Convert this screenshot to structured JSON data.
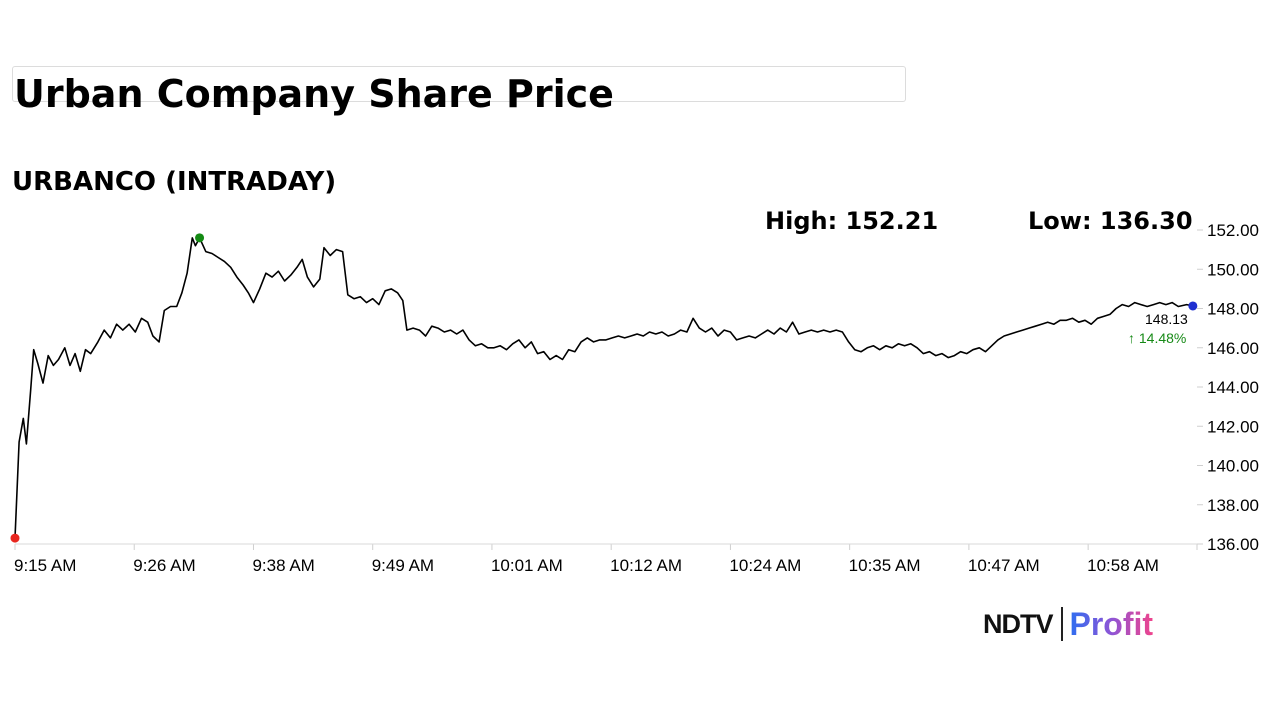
{
  "page": {
    "title": "Urban Company Share Price"
  },
  "chart_data": {
    "type": "line",
    "title": "URBANCO (INTRADAY)",
    "high_label": "High: 152.21",
    "low_label": "Low: 136.30",
    "last_price": "148.13",
    "change_text": "↑ 14.48%",
    "ylim": [
      136.0,
      152.0
    ],
    "y_ticks": [
      "152.00",
      "150.00",
      "148.00",
      "146.00",
      "144.00",
      "142.00",
      "140.00",
      "138.00",
      "136.00"
    ],
    "x_tick_labels": [
      "9:15 AM",
      "9:26 AM",
      "9:38 AM",
      "9:49 AM",
      "10:01 AM",
      "10:12 AM",
      "10:24 AM",
      "10:35 AM",
      "10:47 AM",
      "10:58 AM"
    ],
    "time_range_minutes": [
      0,
      114
    ],
    "x_tick_minutes": [
      0,
      11.5,
      23,
      34.5,
      46,
      57.5,
      69,
      80.5,
      92,
      103.5
    ],
    "series": [
      {
        "color": "#000000",
        "points": [
          [
            0,
            136.3
          ],
          [
            0.4,
            141.2
          ],
          [
            0.8,
            142.4
          ],
          [
            1.1,
            141.1
          ],
          [
            1.5,
            143.8
          ],
          [
            1.8,
            145.9
          ],
          [
            2.2,
            145.2
          ],
          [
            2.7,
            144.2
          ],
          [
            3.2,
            145.6
          ],
          [
            3.7,
            145.1
          ],
          [
            4.2,
            145.4
          ],
          [
            4.8,
            146.0
          ],
          [
            5.3,
            145.1
          ],
          [
            5.8,
            145.7
          ],
          [
            6.3,
            144.8
          ],
          [
            6.8,
            145.9
          ],
          [
            7.3,
            145.7
          ],
          [
            8.0,
            146.3
          ],
          [
            8.6,
            146.9
          ],
          [
            9.2,
            146.5
          ],
          [
            9.8,
            147.2
          ],
          [
            10.4,
            146.9
          ],
          [
            11.0,
            147.2
          ],
          [
            11.6,
            146.8
          ],
          [
            12.2,
            147.5
          ],
          [
            12.8,
            147.3
          ],
          [
            13.3,
            146.6
          ],
          [
            13.9,
            146.3
          ],
          [
            14.4,
            147.9
          ],
          [
            15.0,
            148.1
          ],
          [
            15.6,
            148.1
          ],
          [
            16.1,
            148.8
          ],
          [
            16.6,
            149.8
          ],
          [
            17.1,
            151.6
          ],
          [
            17.4,
            151.2
          ],
          [
            17.8,
            151.6
          ],
          [
            18.4,
            150.9
          ],
          [
            19.0,
            150.8
          ],
          [
            19.6,
            150.6
          ],
          [
            20.2,
            150.4
          ],
          [
            20.8,
            150.1
          ],
          [
            21.4,
            149.6
          ],
          [
            22.0,
            149.2
          ],
          [
            22.5,
            148.8
          ],
          [
            23.0,
            148.3
          ],
          [
            23.6,
            149.0
          ],
          [
            24.2,
            149.8
          ],
          [
            24.8,
            149.6
          ],
          [
            25.4,
            149.9
          ],
          [
            26.0,
            149.4
          ],
          [
            26.6,
            149.7
          ],
          [
            27.2,
            150.1
          ],
          [
            27.7,
            150.5
          ],
          [
            28.2,
            149.6
          ],
          [
            28.8,
            149.1
          ],
          [
            29.4,
            149.5
          ],
          [
            29.8,
            151.1
          ],
          [
            30.4,
            150.7
          ],
          [
            31.0,
            151.0
          ],
          [
            31.6,
            150.9
          ],
          [
            32.1,
            148.7
          ],
          [
            32.7,
            148.5
          ],
          [
            33.3,
            148.6
          ],
          [
            33.9,
            148.3
          ],
          [
            34.5,
            148.5
          ],
          [
            35.1,
            148.2
          ],
          [
            35.7,
            148.9
          ],
          [
            36.3,
            149.0
          ],
          [
            36.9,
            148.8
          ],
          [
            37.4,
            148.4
          ],
          [
            37.8,
            146.9
          ],
          [
            38.4,
            147.0
          ],
          [
            39.0,
            146.9
          ],
          [
            39.6,
            146.6
          ],
          [
            40.2,
            147.1
          ],
          [
            40.8,
            147.0
          ],
          [
            41.4,
            146.8
          ],
          [
            42.0,
            146.9
          ],
          [
            42.6,
            146.7
          ],
          [
            43.2,
            146.9
          ],
          [
            43.8,
            146.4
          ],
          [
            44.4,
            146.1
          ],
          [
            45.0,
            146.2
          ],
          [
            45.6,
            146.0
          ],
          [
            46.2,
            146.0
          ],
          [
            46.8,
            146.1
          ],
          [
            47.4,
            145.9
          ],
          [
            48.0,
            146.2
          ],
          [
            48.6,
            146.4
          ],
          [
            49.2,
            146.0
          ],
          [
            49.8,
            146.3
          ],
          [
            50.4,
            145.7
          ],
          [
            51.0,
            145.8
          ],
          [
            51.6,
            145.4
          ],
          [
            52.2,
            145.6
          ],
          [
            52.8,
            145.4
          ],
          [
            53.4,
            145.9
          ],
          [
            54.0,
            145.8
          ],
          [
            54.6,
            146.3
          ],
          [
            55.2,
            146.5
          ],
          [
            55.8,
            146.3
          ],
          [
            56.4,
            146.4
          ],
          [
            57.0,
            146.4
          ],
          [
            57.6,
            146.5
          ],
          [
            58.2,
            146.6
          ],
          [
            58.8,
            146.5
          ],
          [
            59.4,
            146.6
          ],
          [
            60.0,
            146.7
          ],
          [
            60.6,
            146.6
          ],
          [
            61.2,
            146.8
          ],
          [
            61.8,
            146.7
          ],
          [
            62.4,
            146.8
          ],
          [
            63.0,
            146.6
          ],
          [
            63.6,
            146.7
          ],
          [
            64.2,
            146.9
          ],
          [
            64.8,
            146.8
          ],
          [
            65.4,
            147.5
          ],
          [
            66.0,
            147.0
          ],
          [
            66.6,
            146.8
          ],
          [
            67.2,
            147.0
          ],
          [
            67.8,
            146.6
          ],
          [
            68.4,
            146.9
          ],
          [
            69.0,
            146.8
          ],
          [
            69.6,
            146.4
          ],
          [
            70.2,
            146.5
          ],
          [
            70.8,
            146.6
          ],
          [
            71.4,
            146.5
          ],
          [
            72.0,
            146.7
          ],
          [
            72.6,
            146.9
          ],
          [
            73.2,
            146.7
          ],
          [
            73.8,
            147.0
          ],
          [
            74.4,
            146.8
          ],
          [
            75.0,
            147.3
          ],
          [
            75.6,
            146.7
          ],
          [
            76.2,
            146.8
          ],
          [
            76.8,
            146.9
          ],
          [
            77.4,
            146.8
          ],
          [
            78.0,
            146.9
          ],
          [
            78.6,
            146.8
          ],
          [
            79.2,
            146.9
          ],
          [
            79.8,
            146.8
          ],
          [
            80.4,
            146.3
          ],
          [
            81.0,
            145.9
          ],
          [
            81.6,
            145.8
          ],
          [
            82.2,
            146.0
          ],
          [
            82.8,
            146.1
          ],
          [
            83.4,
            145.9
          ],
          [
            84.0,
            146.1
          ],
          [
            84.6,
            146.0
          ],
          [
            85.2,
            146.2
          ],
          [
            85.8,
            146.1
          ],
          [
            86.4,
            146.2
          ],
          [
            87.0,
            146.0
          ],
          [
            87.6,
            145.7
          ],
          [
            88.2,
            145.8
          ],
          [
            88.8,
            145.6
          ],
          [
            89.4,
            145.7
          ],
          [
            90.0,
            145.5
          ],
          [
            90.6,
            145.6
          ],
          [
            91.2,
            145.8
          ],
          [
            91.8,
            145.7
          ],
          [
            92.4,
            145.9
          ],
          [
            93.0,
            146.0
          ],
          [
            93.6,
            145.8
          ],
          [
            94.2,
            146.1
          ],
          [
            94.8,
            146.4
          ],
          [
            95.4,
            146.6
          ],
          [
            96.0,
            146.7
          ],
          [
            96.6,
            146.8
          ],
          [
            97.2,
            146.9
          ],
          [
            97.8,
            147.0
          ],
          [
            98.4,
            147.1
          ],
          [
            99.0,
            147.2
          ],
          [
            99.6,
            147.3
          ],
          [
            100.2,
            147.2
          ],
          [
            100.8,
            147.4
          ],
          [
            101.4,
            147.4
          ],
          [
            102.0,
            147.5
          ],
          [
            102.6,
            147.3
          ],
          [
            103.2,
            147.4
          ],
          [
            103.8,
            147.2
          ],
          [
            104.4,
            147.5
          ],
          [
            105.0,
            147.6
          ],
          [
            105.6,
            147.7
          ],
          [
            106.2,
            148.0
          ],
          [
            106.8,
            148.2
          ],
          [
            107.4,
            148.1
          ],
          [
            108.0,
            148.3
          ],
          [
            108.6,
            148.2
          ],
          [
            109.2,
            148.1
          ],
          [
            109.8,
            148.2
          ],
          [
            110.4,
            148.3
          ],
          [
            111.0,
            148.2
          ],
          [
            111.6,
            148.3
          ],
          [
            112.2,
            148.1
          ],
          [
            113.0,
            148.2
          ],
          [
            113.6,
            148.13
          ]
        ]
      }
    ],
    "markers": [
      {
        "label": "low",
        "t": 0,
        "value": 136.3,
        "color": "#e8261f"
      },
      {
        "label": "high",
        "t": 17.8,
        "value": 151.6,
        "color": "#138a13"
      },
      {
        "label": "last",
        "t": 113.6,
        "value": 148.13,
        "color": "#1f2fd0"
      }
    ],
    "grid": false
  },
  "brand": {
    "ndtv": "NDTV",
    "profit": "Profit"
  }
}
